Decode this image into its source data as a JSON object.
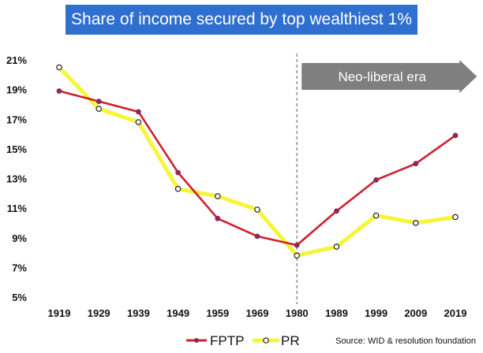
{
  "chart_data": {
    "type": "line",
    "title": "Share of income secured by top wealthiest 1%",
    "xlabel": "",
    "ylabel": "",
    "categories": [
      "1919",
      "1929",
      "1939",
      "1949",
      "1959",
      "1969",
      "1980",
      "1989",
      "1999",
      "2009",
      "2019"
    ],
    "y_ticks": [
      "21%",
      "19%",
      "17%",
      "15%",
      "13%",
      "11%",
      "9%",
      "7%",
      "5%"
    ],
    "ylim": [
      5,
      21
    ],
    "grid": false,
    "legend_position": "bottom",
    "series": [
      {
        "name": "FPTP",
        "color": "#d0202e",
        "marker": "filled-circle",
        "values": [
          18.9,
          18.2,
          17.5,
          13.4,
          10.3,
          9.1,
          8.5,
          10.8,
          12.9,
          14.0,
          15.9
        ]
      },
      {
        "name": "PR",
        "color": "#f5f53a",
        "marker": "hollow-circle",
        "values": [
          20.5,
          17.7,
          16.8,
          12.3,
          11.8,
          10.9,
          7.8,
          8.4,
          10.5,
          10.0,
          10.4
        ]
      }
    ],
    "annotations": {
      "era_label": "Neo-liberal era",
      "era_start": "1980",
      "source": "Source: WID & resolution foundation"
    },
    "colors": {
      "title_background": "#2f6fd0",
      "era_arrow": "#7f7f7f",
      "divider": "#777777"
    }
  }
}
